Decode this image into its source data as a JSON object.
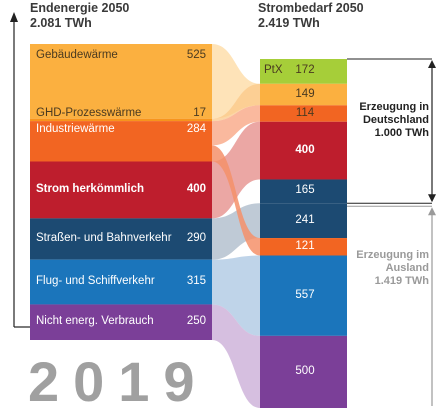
{
  "left": {
    "title": "Endenergie 2050",
    "total": "2.081 TWh",
    "segments": [
      {
        "label": "Gebäudewärme",
        "value": 525,
        "color": "#fbb040"
      },
      {
        "label": "GHD-Prozesswärme",
        "value": 17,
        "color": "#f7941d"
      },
      {
        "label": "Industriewärme",
        "value": 284,
        "color": "#f26522"
      },
      {
        "label": "Strom herkömmlich",
        "value": 400,
        "color": "#be1e2d"
      },
      {
        "label": "Straßen- und Bahnverkehr",
        "value": 290,
        "color": "#1c4a72"
      },
      {
        "label": "Flug- und Schiffverkehr",
        "value": 315,
        "color": "#1b75bb"
      },
      {
        "label": "Nicht energ. Verbrauch",
        "value": 250,
        "color": "#7b3f98"
      }
    ]
  },
  "right": {
    "title": "Strombedarf 2050",
    "total": "2.419 TWh",
    "segments": [
      {
        "label": "PtX",
        "value": 172,
        "color": "#a6ce39"
      },
      {
        "label": "",
        "value": 149,
        "color": "#fbb040"
      },
      {
        "label": "",
        "value": 114,
        "color": "#f26522"
      },
      {
        "label": "",
        "value": 400,
        "color": "#be1e2d"
      },
      {
        "label": "",
        "value": 165,
        "color": "#1c4a72"
      },
      {
        "label": "",
        "value": 241,
        "color": "#1c4a72"
      },
      {
        "label": "",
        "value": 121,
        "color": "#f26522"
      },
      {
        "label": "",
        "value": 557,
        "color": "#1b75bb"
      },
      {
        "label": "",
        "value": 500,
        "color": "#7b3f98"
      }
    ]
  },
  "annotations": {
    "domestic": {
      "line1": "Erzeugung in",
      "line2": "Deutschland",
      "line3": "1.000 TWh",
      "color": "#222222"
    },
    "abroad": {
      "line1": "Erzeugung im",
      "line2": "Ausland",
      "line3": "1.419 TWh",
      "color": "#9a9a9a"
    }
  },
  "year": "2019"
}
